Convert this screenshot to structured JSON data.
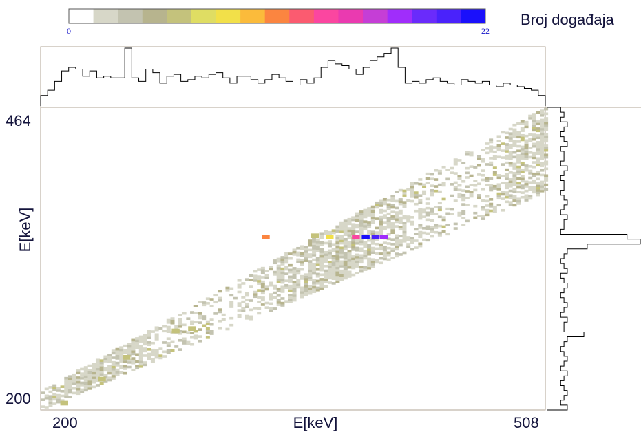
{
  "chart_data": {
    "type": "heatmap",
    "title": "Broj događaja",
    "xlabel": "E[keV]",
    "ylabel": "E[keV]",
    "xlim": [
      200,
      508
    ],
    "ylim": [
      200,
      464
    ],
    "x_tick_labels": [
      "200",
      "508"
    ],
    "y_tick_labels": [
      "464",
      "200"
    ],
    "colorbar": {
      "min_label": "0",
      "max_label": "22",
      "min": 0,
      "max": 22,
      "colors": [
        "#ffffff",
        "#d7d7c8",
        "#c3c3b0",
        "#b7b48e",
        "#c4c27c",
        "#dfdd63",
        "#f2e049",
        "#fbbb3b",
        "#fb8540",
        "#fb5b70",
        "#fb46a0",
        "#ea3ab0",
        "#c53ed6",
        "#a02dfb",
        "#6a2bfb",
        "#4a22fb",
        "#1a10fb"
      ]
    },
    "band": {
      "description_points_x": [
        200,
        508
      ],
      "lower_edge_y": [
        200,
        390
      ],
      "upper_edge_y": [
        216,
        464
      ]
    },
    "hotspots": [
      {
        "x": 374,
        "y": 350,
        "count": 8
      },
      {
        "x": 390,
        "y": 350,
        "count": 14
      },
      {
        "x": 396,
        "y": 350,
        "count": 22
      },
      {
        "x": 402,
        "y": 350,
        "count": 20
      },
      {
        "x": 407,
        "y": 350,
        "count": 18
      },
      {
        "x": 365,
        "y": 351,
        "count": 6
      },
      {
        "x": 335,
        "y": 350,
        "count": 11
      },
      {
        "x": 290,
        "y": 270,
        "count": 6
      },
      {
        "x": 280,
        "y": 268,
        "count": 6
      },
      {
        "x": 250,
        "y": 245,
        "count": 6
      },
      {
        "x": 235,
        "y": 226,
        "count": 6
      },
      {
        "x": 212,
        "y": 205,
        "count": 6
      }
    ],
    "projection_x": {
      "values": [
        6,
        9,
        14,
        20,
        22,
        21,
        17,
        20,
        16,
        17,
        16,
        16,
        33,
        16,
        14,
        21,
        19,
        13,
        17,
        18,
        14,
        15,
        17,
        16,
        18,
        19,
        16,
        13,
        17,
        17,
        15,
        13,
        15,
        18,
        16,
        14,
        12,
        15,
        13,
        16,
        22,
        26,
        24,
        23,
        21,
        18,
        22,
        26,
        28,
        30,
        33,
        22,
        13,
        14,
        13,
        15,
        16,
        14,
        13,
        12,
        15,
        14,
        13,
        14,
        12,
        11,
        13,
        12,
        11,
        10,
        9,
        6
      ]
    },
    "projection_y": {
      "values": [
        4,
        5,
        4,
        6,
        5,
        4,
        5,
        6,
        4,
        5,
        5,
        4,
        6,
        5,
        4,
        5,
        5,
        4,
        5,
        6,
        5,
        4,
        6,
        5,
        5,
        4,
        24,
        28,
        12,
        6,
        5,
        4,
        5,
        6,
        4,
        5,
        6,
        5,
        4,
        5,
        6,
        5,
        4,
        6,
        5,
        5,
        11,
        6,
        5,
        4,
        5,
        6,
        5,
        4,
        6,
        5,
        4,
        5,
        6,
        5,
        4,
        6
      ]
    }
  }
}
